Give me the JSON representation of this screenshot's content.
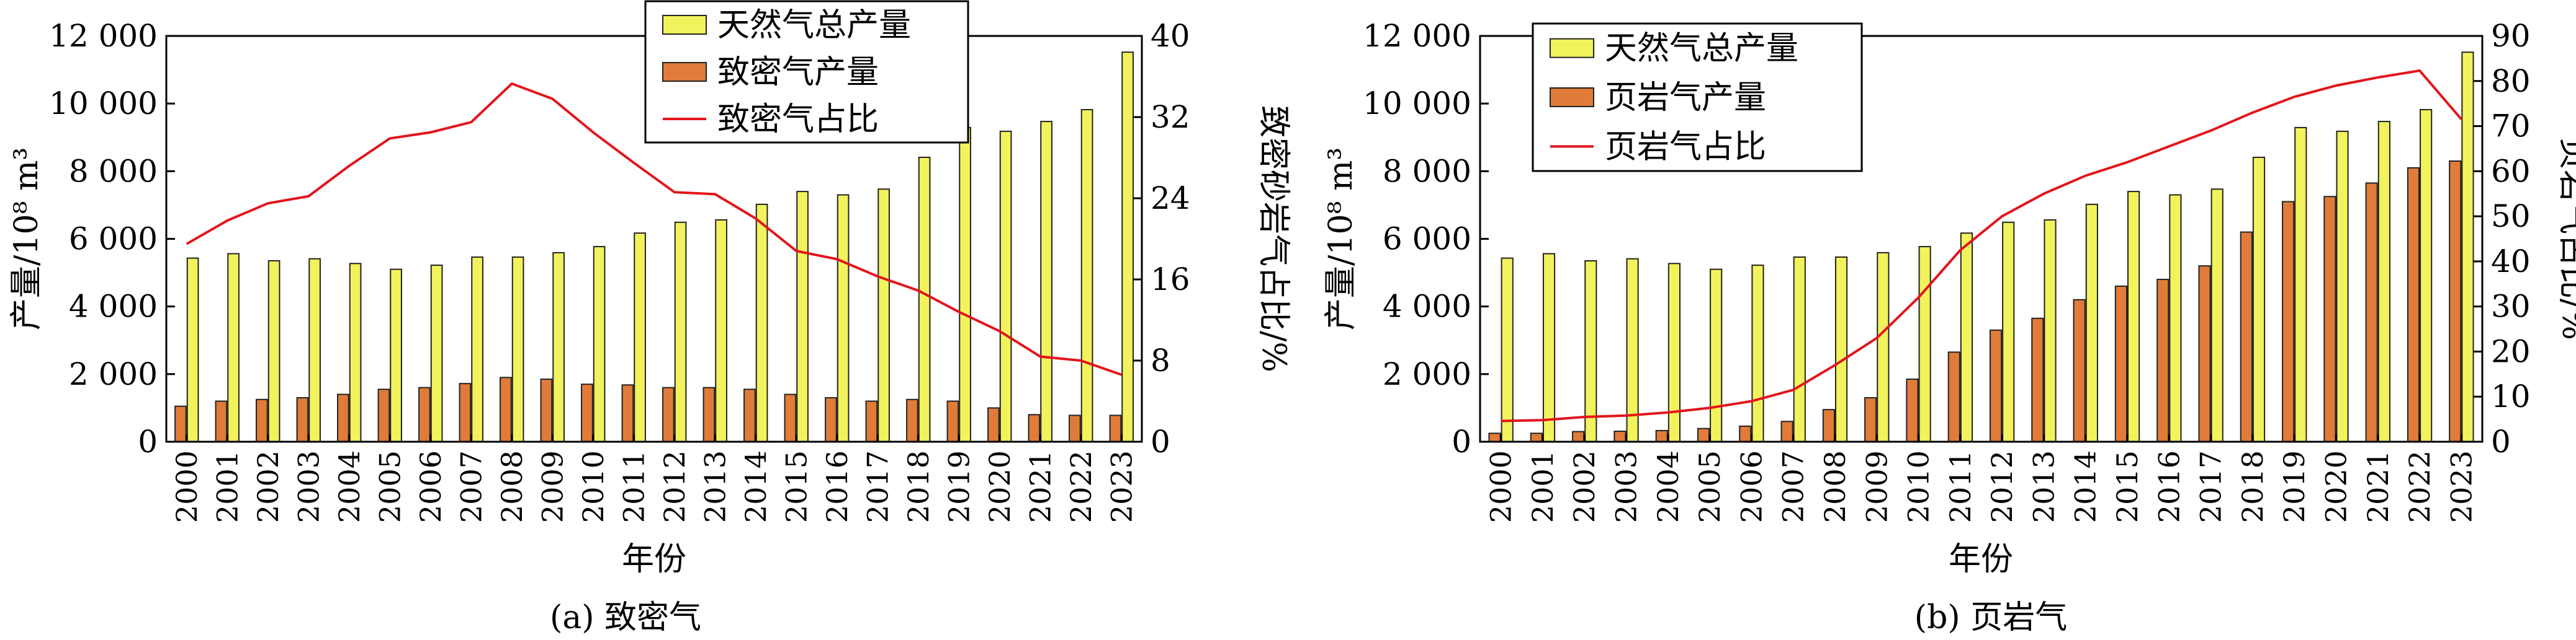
{
  "panel_a": {
    "caption": "(a) 致密气",
    "legend": [
      "天然气总产量",
      "致密气产量",
      "致密气占比"
    ]
  },
  "panel_b": {
    "caption": "(b) 页岩气",
    "legend": [
      "天然气总产量",
      "页岩气产量",
      "页岩气占比"
    ]
  },
  "colors": {
    "total_bar": "#f2f25c",
    "sub_bar": "#e07b39",
    "line": "#e3141b"
  },
  "chart_data": [
    {
      "type": "bar",
      "title": "(a) 致密气",
      "categories": [
        "2000",
        "2001",
        "2002",
        "2003",
        "2004",
        "2005",
        "2006",
        "2007",
        "2008",
        "2009",
        "2010",
        "2011",
        "2012",
        "2013",
        "2014",
        "2015",
        "2016",
        "2017",
        "2018",
        "2019",
        "2020",
        "2021",
        "2022",
        "2023"
      ],
      "xlabel": "年份",
      "ylabel": "产量/10⁸ m³",
      "y2label": "致密砂岩气占比/%",
      "ylim": [
        0,
        12000
      ],
      "y2lim": [
        0,
        40
      ],
      "yticks": [
        "0",
        "2 000",
        "4 000",
        "6 000",
        "8 000",
        "10 000",
        "12 000"
      ],
      "y2ticks": [
        "0",
        "8",
        "16",
        "24",
        "32",
        "40"
      ],
      "legend_position": "top-center",
      "series": [
        {
          "name": "天然气总产量",
          "type": "bar",
          "axis": "left",
          "values": [
            5430,
            5560,
            5350,
            5410,
            5270,
            5100,
            5220,
            5460,
            5460,
            5590,
            5770,
            6170,
            6490,
            6560,
            7020,
            7400,
            7300,
            7470,
            8410,
            9290,
            9180,
            9470,
            9820,
            11520
          ]
        },
        {
          "name": "致密气产量",
          "type": "bar",
          "axis": "left",
          "values": [
            1050,
            1200,
            1250,
            1300,
            1400,
            1550,
            1600,
            1720,
            1900,
            1850,
            1700,
            1680,
            1600,
            1600,
            1550,
            1400,
            1300,
            1200,
            1250,
            1200,
            1000,
            800,
            780,
            780
          ]
        },
        {
          "name": "致密气占比",
          "type": "line",
          "axis": "right",
          "values": [
            19.5,
            21.8,
            23.5,
            24.2,
            27.2,
            29.9,
            30.5,
            31.5,
            35.3,
            33.8,
            30.5,
            27.5,
            24.6,
            24.4,
            22.0,
            18.8,
            18.0,
            16.3,
            14.9,
            12.8,
            10.9,
            8.4,
            8.0,
            6.6
          ]
        }
      ]
    },
    {
      "type": "bar",
      "title": "(b) 页岩气",
      "categories": [
        "2000",
        "2001",
        "2002",
        "2003",
        "2004",
        "2005",
        "2006",
        "2007",
        "2008",
        "2009",
        "2010",
        "2011",
        "2012",
        "2013",
        "2014",
        "2015",
        "2016",
        "2017",
        "2018",
        "2019",
        "2020",
        "2021",
        "2022",
        "2023"
      ],
      "xlabel": "年份",
      "ylabel": "产量/10⁸ m³",
      "y2label": "页岩气占比/%",
      "ylim": [
        0,
        12000
      ],
      "y2lim": [
        0,
        90
      ],
      "yticks": [
        "0",
        "2 000",
        "4 000",
        "6 000",
        "8 000",
        "10 000",
        "12 000"
      ],
      "y2ticks": [
        "0",
        "10",
        "20",
        "30",
        "40",
        "50",
        "60",
        "70",
        "80",
        "90"
      ],
      "legend_position": "top-left",
      "series": [
        {
          "name": "天然气总产量",
          "type": "bar",
          "axis": "left",
          "values": [
            5430,
            5560,
            5350,
            5410,
            5270,
            5100,
            5220,
            5460,
            5460,
            5590,
            5770,
            6170,
            6490,
            6560,
            7020,
            7400,
            7300,
            7470,
            8410,
            9290,
            9180,
            9470,
            9820,
            11520
          ]
        },
        {
          "name": "页岩气产量",
          "type": "bar",
          "axis": "left",
          "values": [
            250,
            250,
            300,
            310,
            330,
            390,
            460,
            600,
            950,
            1300,
            1850,
            2650,
            3300,
            3650,
            4200,
            4600,
            4800,
            5200,
            6200,
            7100,
            7250,
            7650,
            8100,
            8300
          ]
        },
        {
          "name": "页岩气占比",
          "type": "line",
          "axis": "right",
          "values": [
            4.6,
            4.8,
            5.5,
            5.8,
            6.5,
            7.5,
            9.0,
            11.5,
            17.0,
            23.0,
            32.0,
            42.5,
            50.0,
            55.0,
            59.0,
            62.0,
            65.5,
            69.0,
            73.0,
            76.5,
            79.0,
            80.8,
            82.3,
            71.5
          ]
        }
      ]
    }
  ]
}
